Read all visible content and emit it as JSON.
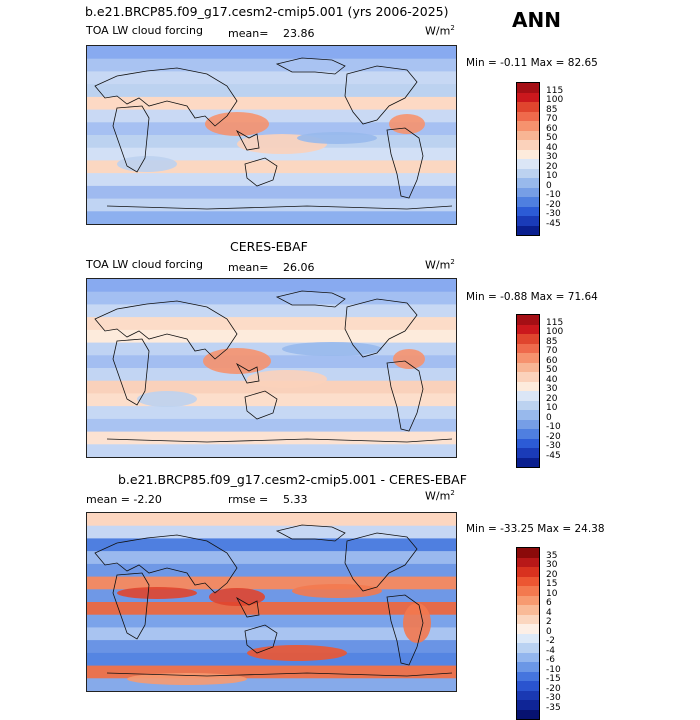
{
  "season": "ANN",
  "panels": [
    {
      "id": "model",
      "title": "b.e21.BRCP85.f09_g17.cesm2-cmip5.001 (yrs 2006-2025)",
      "left_label": "TOA LW cloud forcing",
      "stat_label": "mean=",
      "stat_value": "23.86",
      "unit": "W/m",
      "unit_exp": "2",
      "minmax": "Min =   -0.11  Max =   82.65",
      "levels": [
        "115",
        "100",
        "85",
        "70",
        "60",
        "50",
        "40",
        "30",
        "20",
        "10",
        "0",
        "-10",
        "-20",
        "-30",
        "-45"
      ],
      "colors": [
        "#a50f15",
        "#cb181d",
        "#e0452e",
        "#ef6a4c",
        "#f6926e",
        "#f8b594",
        "#fbd2bb",
        "#fdebdc",
        "#dbe6f6",
        "#bcd2f0",
        "#98b9ec",
        "#769ee6",
        "#4f7fe0",
        "#2c5bd6",
        "#1a3bb8",
        "#0a1f8f"
      ],
      "bands": [
        "#88aaf0",
        "#a9c3f2",
        "#c7d8f4",
        "#bcd2f0",
        "#fdd9c4",
        "#c9d9f4",
        "#a6c0f2",
        "#bcd2f0",
        "#d2e0f6",
        "#fbd7c1",
        "#cddcf5",
        "#9fbaf0",
        "#c0d4f3",
        "#8db0ef"
      ]
    },
    {
      "id": "obs",
      "title": "CERES-EBAF",
      "left_label": "TOA LW cloud forcing",
      "stat_label": "mean=",
      "stat_value": "26.06",
      "unit": "W/m",
      "unit_exp": "2",
      "minmax": "Min =   -0.88  Max =   71.64",
      "levels": [
        "115",
        "100",
        "85",
        "70",
        "60",
        "50",
        "40",
        "30",
        "20",
        "10",
        "0",
        "-10",
        "-20",
        "-30",
        "-45"
      ],
      "colors": [
        "#a50f15",
        "#cb181d",
        "#e0452e",
        "#ef6a4c",
        "#f6926e",
        "#f8b594",
        "#fbd2bb",
        "#fdebdc",
        "#dbe6f6",
        "#bcd2f0",
        "#98b9ec",
        "#769ee6",
        "#4f7fe0",
        "#2c5bd6",
        "#1a3bb8",
        "#0a1f8f"
      ],
      "bands": [
        "#88aaf0",
        "#a3bff2",
        "#c7d8f4",
        "#fcdcc8",
        "#fdebdc",
        "#bfd3f3",
        "#a3bef1",
        "#c2d5f3",
        "#f9d1bb",
        "#fcdecb",
        "#c6d8f4",
        "#a9c3f2",
        "#fce2d2",
        "#c4d6f4"
      ]
    },
    {
      "id": "diff",
      "title": "b.e21.BRCP85.f09_g17.cesm2-cmip5.001 - CERES-EBAF",
      "left_label": "mean =   -2.20",
      "stat_label": "rmse =",
      "stat_value": "5.33",
      "unit": "W/m",
      "unit_exp": "2",
      "minmax": "Min = -33.25  Max =   24.38",
      "levels": [
        "35",
        "30",
        "20",
        "15",
        "10",
        "6",
        "4",
        "2",
        "0",
        "-2",
        "-4",
        "-6",
        "-10",
        "-15",
        "-20",
        "-30",
        "-35"
      ],
      "colors": [
        "#8b0a0a",
        "#b81818",
        "#d8321f",
        "#ec5632",
        "#f3794f",
        "#f79a70",
        "#f9ba97",
        "#fbd6bf",
        "#fdefe6",
        "#dde9f8",
        "#bad2f2",
        "#93b6ee",
        "#6b97e6",
        "#4575de",
        "#2a54cf",
        "#1a39b3",
        "#0f2596",
        "#071270"
      ],
      "bands": [
        "#fcd6c0",
        "#c6d7f4",
        "#4f7fe0",
        "#9ab9ee",
        "#6f98e6",
        "#f08a65",
        "#6f98e6",
        "#e56b4a",
        "#7ba3ea",
        "#a9c4f1",
        "#6a94e5",
        "#5585e2",
        "#e9734f",
        "#86aaea"
      ]
    }
  ]
}
